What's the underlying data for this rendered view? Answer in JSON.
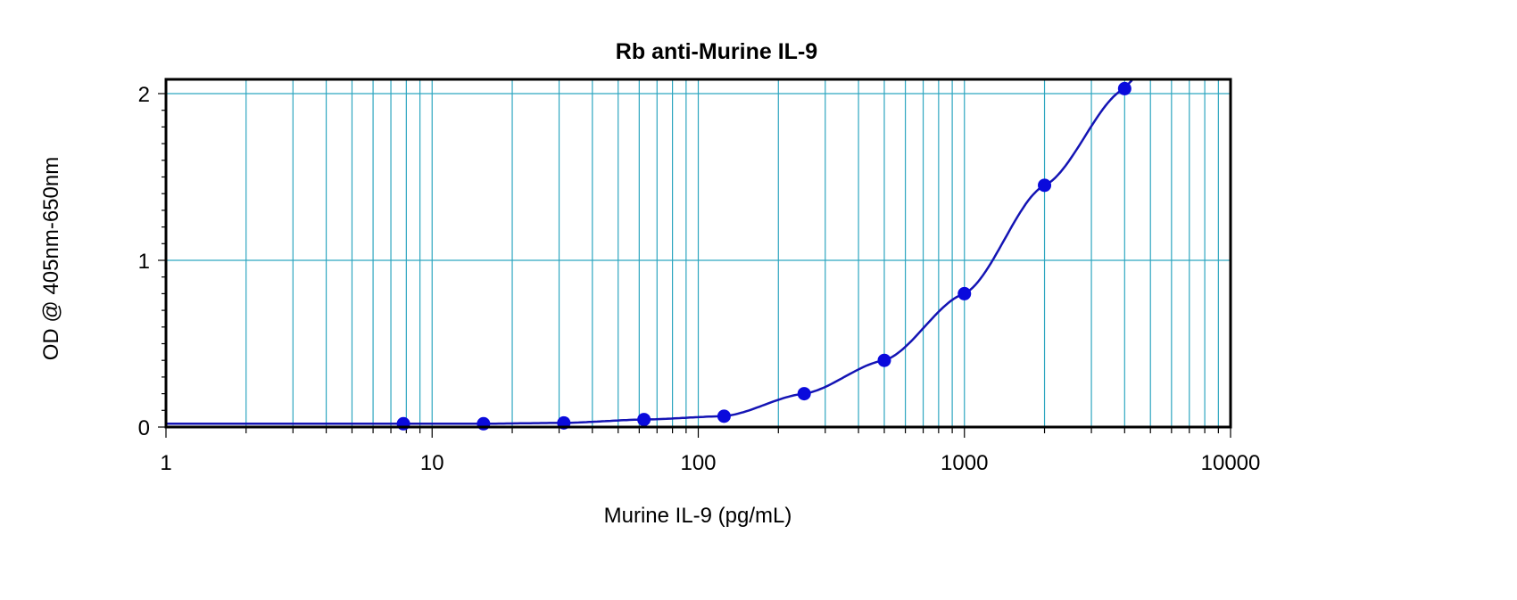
{
  "chart_data": {
    "type": "scatter",
    "title": "Rb anti-Murine IL-9",
    "xlabel": "Murine IL-9 (pg/mL)",
    "ylabel": "OD @ 405nm-650nm",
    "x_scale": "log",
    "xlim": [
      1,
      10000
    ],
    "ylim": [
      0,
      2.1
    ],
    "grid": true,
    "legend": "none",
    "x_ticks": [
      1,
      10,
      100,
      1000,
      10000
    ],
    "x_tick_labels": [
      "1",
      "10",
      "100",
      "1000",
      "10000"
    ],
    "y_ticks": [
      0,
      1,
      2
    ],
    "y_tick_labels": [
      "0",
      "1",
      "2"
    ],
    "series": [
      {
        "x": [
          7.8,
          15.6,
          31.25,
          62.5,
          125,
          250,
          500,
          1000,
          2000,
          4000
        ],
        "y": [
          0.02,
          0.02,
          0.025,
          0.045,
          0.065,
          0.2,
          0.4,
          0.8,
          1.45,
          2.03
        ]
      }
    ],
    "colors": {
      "points": "#0a0adc",
      "curve": "#1414b4",
      "grid": "#2ea6c0",
      "frame": "#000000"
    }
  }
}
